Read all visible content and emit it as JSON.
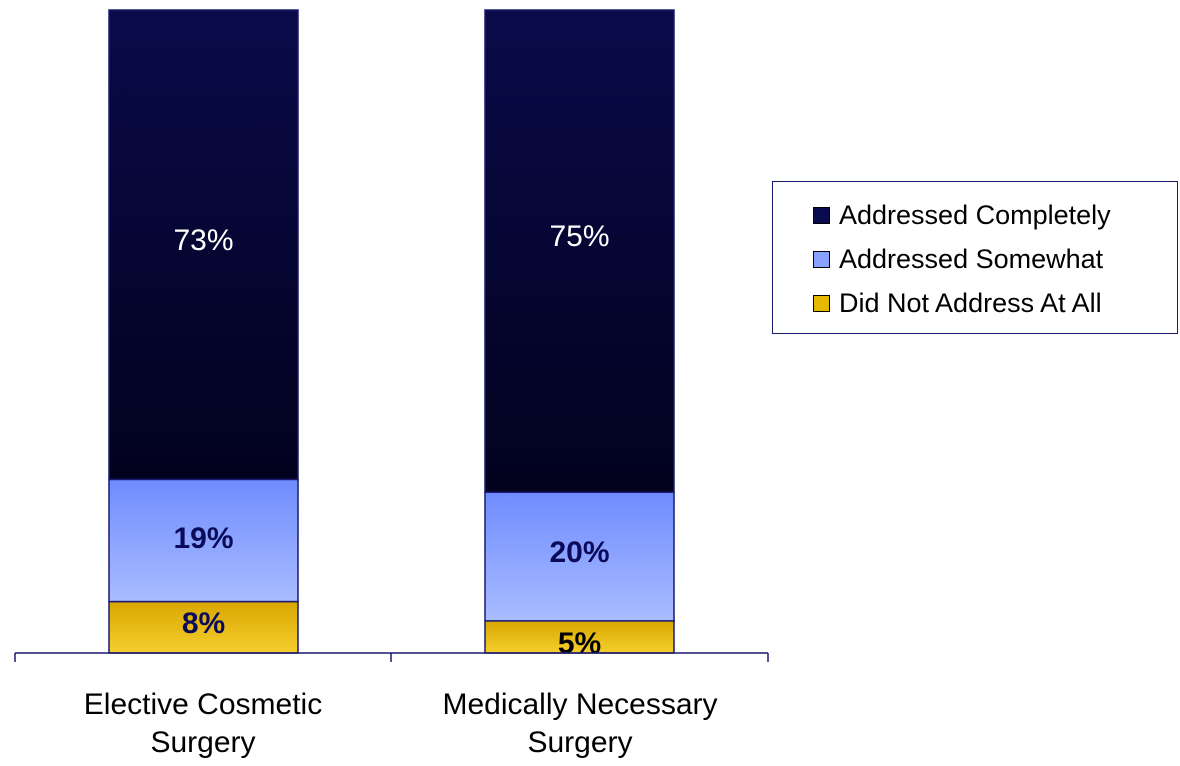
{
  "chart_data": {
    "type": "bar",
    "stacked": true,
    "categories": [
      {
        "line1": "Elective Cosmetic",
        "line2": "Surgery"
      },
      {
        "line1": "Medically Necessary",
        "line2": "Surgery"
      }
    ],
    "series": [
      {
        "name": "Did Not Address At All",
        "values": [
          8,
          5
        ],
        "color": "#e6b800",
        "label_color": "#0b0b5a",
        "label_bold": true
      },
      {
        "name": "Addressed Somewhat",
        "values": [
          19,
          20
        ],
        "color": "#8aa2ff",
        "label_color": "#0b0b5a",
        "label_bold": true
      },
      {
        "name": "Addressed Completely",
        "values": [
          73,
          75
        ],
        "color": "#060639",
        "label_color": "#ffffff",
        "label_bold": false
      }
    ],
    "data_labels": [
      [
        "8%",
        "5%"
      ],
      [
        "19%",
        "20%"
      ],
      [
        "73%",
        "75%"
      ]
    ],
    "legend": {
      "position": "right",
      "items": [
        "Addressed Completely",
        "Addressed Somewhat",
        "Did Not Address At All"
      ],
      "colors": [
        "#0a0a50",
        "#8aa2ff",
        "#e6b800"
      ]
    },
    "ylim": [
      0,
      100
    ],
    "axis_color": "#1a1a6e",
    "grid": false
  }
}
